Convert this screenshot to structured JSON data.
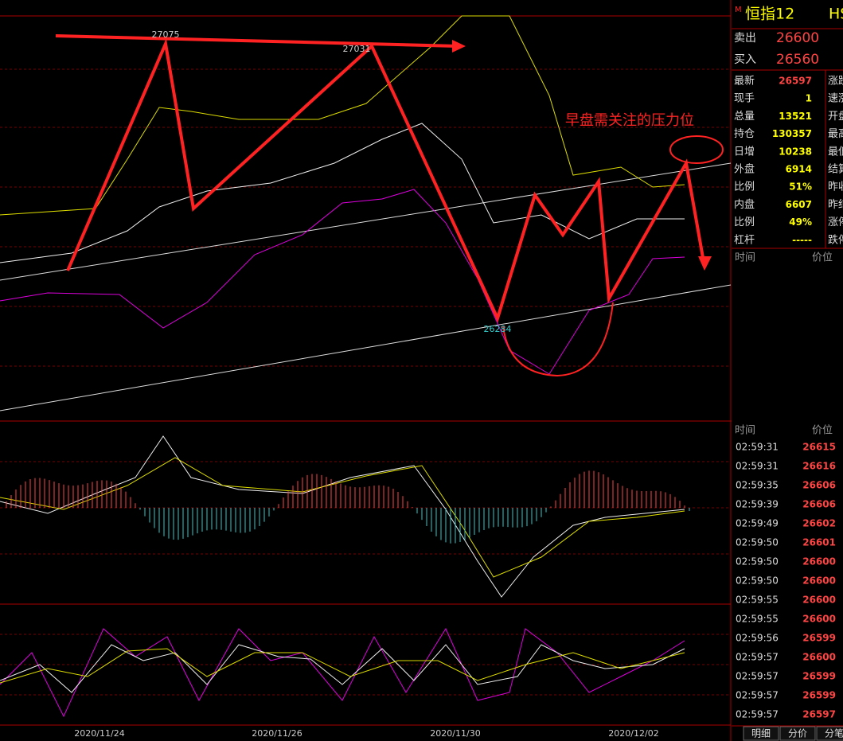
{
  "chart": {
    "annotations": {
      "high1": "27075",
      "high2": "27031",
      "low": "26284",
      "note": "早盘需关注的压力位"
    },
    "dates": [
      "2020/11/24",
      "2020/11/26",
      "2020/11/30",
      "2020/12/02"
    ]
  },
  "panel": {
    "marker": "M",
    "symbol": "恒指12",
    "code": "HS",
    "quote": [
      {
        "label": "卖出",
        "value": "26600"
      },
      {
        "label": "买入",
        "value": "26560"
      }
    ],
    "stats": [
      {
        "label": "最新",
        "value": "26597",
        "right": "涨跌"
      },
      {
        "label": "现手",
        "value": "1",
        "right": "速涨"
      },
      {
        "label": "总量",
        "value": "13521",
        "right": "开盘"
      },
      {
        "label": "持仓",
        "value": "130357",
        "right": "最高"
      },
      {
        "label": "日增",
        "value": "10238",
        "right": "最低"
      },
      {
        "label": "外盘",
        "value": "6914",
        "right": "结算"
      },
      {
        "label": "比例",
        "value": "51%",
        "right": "昨收"
      },
      {
        "label": "内盘",
        "value": "6607",
        "right": "昨结"
      },
      {
        "label": "比例",
        "value": "49%",
        "right": "涨停"
      },
      {
        "label": "杠杆",
        "value": "-----",
        "right": "跌停"
      }
    ],
    "upper_header": [
      "时间",
      "价位"
    ],
    "lower_header": [
      "时间",
      "价位"
    ],
    "trades": [
      [
        "02:59:31",
        "26615"
      ],
      [
        "02:59:31",
        "26616"
      ],
      [
        "02:59:35",
        "26606"
      ],
      [
        "02:59:39",
        "26606"
      ],
      [
        "02:59:49",
        "26602"
      ],
      [
        "02:59:50",
        "26601"
      ],
      [
        "02:59:50",
        "26600"
      ],
      [
        "02:59:50",
        "26600"
      ],
      [
        "02:59:55",
        "26600"
      ],
      [
        "02:59:55",
        "26600"
      ],
      [
        "02:59:56",
        "26599"
      ],
      [
        "02:59:57",
        "26600"
      ],
      [
        "02:59:57",
        "26599"
      ],
      [
        "02:59:57",
        "26599"
      ],
      [
        "02:59:57",
        "26597"
      ]
    ],
    "tabs": [
      "明细",
      "分价",
      "分笔"
    ]
  }
}
